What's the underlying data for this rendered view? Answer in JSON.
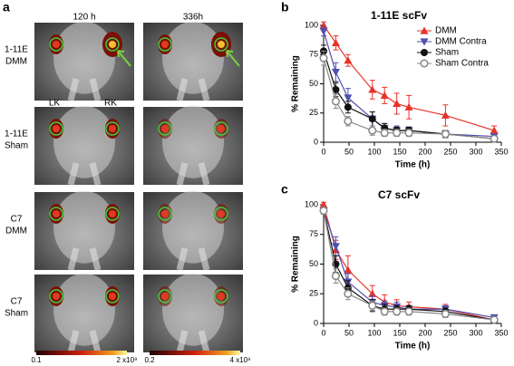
{
  "panel_a": {
    "label": "a",
    "columns": [
      "120 h",
      "336h"
    ],
    "rows": [
      [
        "1-11E",
        "DMM"
      ],
      [
        "1-11E",
        "Sham"
      ],
      [
        "C7",
        "DMM"
      ],
      [
        "C7",
        "Sham"
      ]
    ],
    "side_labels": [
      "LK",
      "RK"
    ],
    "colorbars": [
      {
        "min": "0.1",
        "max": "2 x10⁹"
      },
      {
        "min": "0.2",
        "max": "4 x10⁸"
      }
    ]
  },
  "chart_data": [
    {
      "type": "line",
      "label": "b",
      "title": "1-11E scFv",
      "x_label": "Time (h)",
      "y_label": "% Remaining",
      "x": [
        0,
        24,
        48,
        96,
        120,
        144,
        168,
        240,
        336
      ],
      "xlim": [
        0,
        350
      ],
      "xticks": [
        0,
        50,
        100,
        150,
        200,
        250,
        300,
        350
      ],
      "ylim": [
        0,
        100
      ],
      "yticks": [
        0,
        25,
        50,
        75,
        100
      ],
      "legend": "upper right",
      "series": [
        {
          "name": "DMM",
          "color": "#e8332a",
          "marker": "triangle-up",
          "values": [
            100,
            85,
            70,
            45,
            40,
            33,
            30,
            23,
            10
          ],
          "errors": [
            3,
            6,
            5,
            8,
            7,
            9,
            10,
            9,
            4
          ]
        },
        {
          "name": "DMM Contra",
          "color": "#5050b0",
          "marker": "triangle-down",
          "values": [
            95,
            60,
            38,
            20,
            12,
            10,
            10,
            7,
            5
          ],
          "errors": [
            4,
            8,
            8,
            6,
            4,
            4,
            3,
            3,
            2
          ]
        },
        {
          "name": "Sham",
          "color": "#111111",
          "marker": "circle",
          "values": [
            78,
            45,
            30,
            20,
            12,
            10,
            10,
            7,
            3
          ],
          "errors": [
            5,
            6,
            5,
            6,
            4,
            3,
            3,
            3,
            2
          ]
        },
        {
          "name": "Sham Contra",
          "color": "#888888",
          "marker": "circle-open",
          "values": [
            72,
            35,
            18,
            10,
            8,
            8,
            8,
            7,
            3
          ],
          "errors": [
            6,
            6,
            4,
            4,
            3,
            3,
            3,
            2,
            2
          ]
        }
      ]
    },
    {
      "type": "line",
      "label": "c",
      "title": "C7 scFv",
      "x_label": "Time (h)",
      "y_label": "% Remaining",
      "x": [
        0,
        24,
        48,
        96,
        120,
        144,
        168,
        240,
        336
      ],
      "xlim": [
        0,
        350
      ],
      "xticks": [
        0,
        50,
        100,
        150,
        200,
        250,
        300,
        350
      ],
      "ylim": [
        0,
        100
      ],
      "yticks": [
        0,
        25,
        50,
        75,
        100
      ],
      "series": [
        {
          "color": "#e8332a",
          "marker": "triangle-up",
          "values": [
            100,
            62,
            45,
            25,
            18,
            15,
            14,
            12,
            3
          ],
          "errors": [
            2,
            8,
            12,
            7,
            6,
            5,
            4,
            4,
            2
          ]
        },
        {
          "color": "#5050b0",
          "marker": "triangle-down",
          "values": [
            95,
            65,
            35,
            18,
            15,
            14,
            12,
            12,
            5
          ],
          "errors": [
            3,
            8,
            7,
            5,
            4,
            4,
            3,
            3,
            2
          ]
        },
        {
          "color": "#111111",
          "marker": "circle",
          "values": [
            95,
            50,
            30,
            15,
            12,
            12,
            12,
            10,
            3
          ],
          "errors": [
            3,
            7,
            6,
            5,
            4,
            3,
            3,
            3,
            2
          ]
        },
        {
          "color": "#888888",
          "marker": "circle-open",
          "values": [
            95,
            40,
            25,
            15,
            10,
            10,
            10,
            8,
            3
          ],
          "errors": [
            3,
            6,
            5,
            4,
            3,
            3,
            3,
            3,
            2
          ]
        }
      ]
    }
  ]
}
